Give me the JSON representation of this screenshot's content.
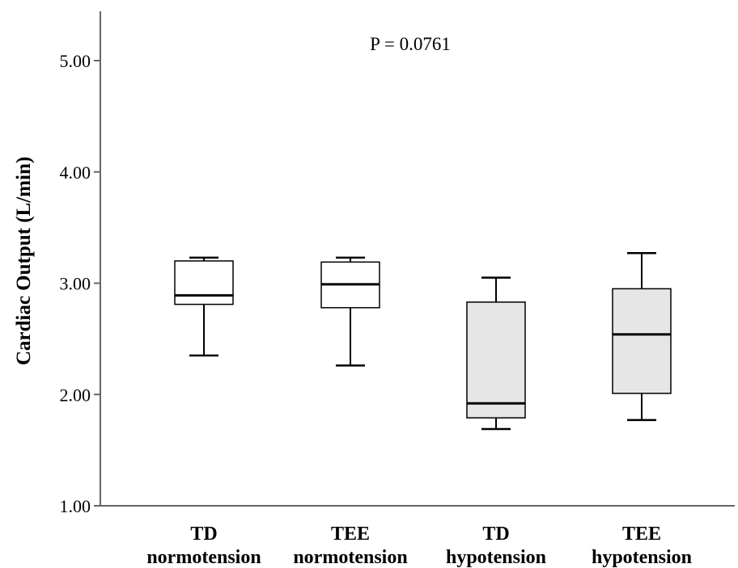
{
  "chart_data": {
    "type": "boxplot",
    "annotation": "P = 0.0761",
    "ylabel": "Cardiac Output (L/min)",
    "ylim": [
      1.0,
      5.4
    ],
    "yticks": [
      "1.00",
      "2.00",
      "3.00",
      "4.00",
      "5.00"
    ],
    "categories": [
      {
        "line1": "TD",
        "line2": "normotension"
      },
      {
        "line1": "TEE",
        "line2": "normotension"
      },
      {
        "line1": "TD",
        "line2": "hypotension"
      },
      {
        "line1": "TEE",
        "line2": "hypotension"
      }
    ],
    "boxes": [
      {
        "min": 2.35,
        "q1": 2.81,
        "median": 2.89,
        "q3": 3.2,
        "max": 3.23,
        "fill": "#ffffff"
      },
      {
        "min": 2.26,
        "q1": 2.78,
        "median": 2.99,
        "q3": 3.19,
        "max": 3.23,
        "fill": "#ffffff"
      },
      {
        "min": 1.69,
        "q1": 1.79,
        "median": 1.92,
        "q3": 2.83,
        "max": 3.05,
        "fill": "#e6e6e6"
      },
      {
        "min": 1.77,
        "q1": 2.01,
        "median": 2.54,
        "q3": 2.95,
        "max": 3.27,
        "fill": "#e6e6e6"
      }
    ],
    "grid": false,
    "legend": "none"
  }
}
